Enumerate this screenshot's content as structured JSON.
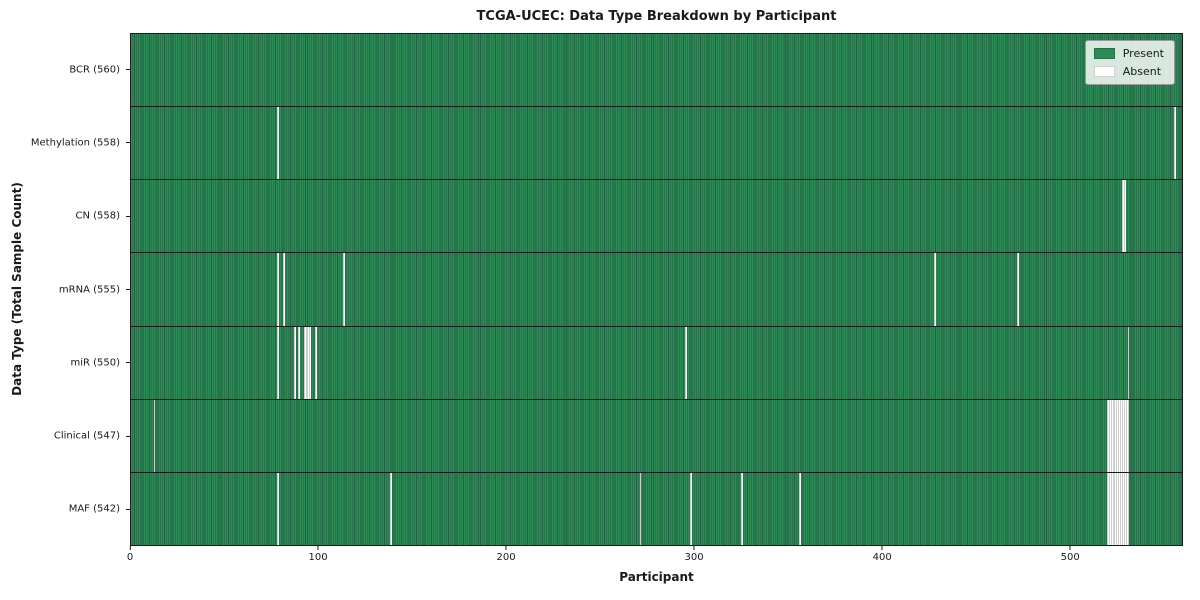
{
  "chart_data": {
    "type": "heatmap",
    "title": "TCGA-UCEC: Data Type Breakdown by Participant",
    "xlabel": "Participant",
    "ylabel": "Data Type (Total Sample Count)",
    "x_ticks": [
      0,
      100,
      200,
      300,
      400,
      500
    ],
    "x_range": [
      0,
      560
    ],
    "total_participants": 560,
    "grid": false,
    "legend_position": "upper right",
    "legend": [
      {
        "label": "Present",
        "color": "#2e8b57"
      },
      {
        "label": "Absent",
        "color": "#ffffff"
      }
    ],
    "colors": {
      "present": "#2e8b57",
      "present_edge": "#1f6240",
      "absent": "#ffffff"
    },
    "rows": [
      {
        "label": "BCR (560)",
        "present_count": 560,
        "absent_participants": []
      },
      {
        "label": "Methylation (558)",
        "present_count": 558,
        "absent_participants": [
          78,
          556
        ]
      },
      {
        "label": "CN (558)",
        "present_count": 558,
        "absent_participants": [
          528,
          529
        ]
      },
      {
        "label": "mRNA (555)",
        "present_count": 555,
        "absent_participants": [
          78,
          81,
          113,
          428,
          472
        ]
      },
      {
        "label": "miR (550)",
        "present_count": 550,
        "absent_participants": [
          78,
          87,
          89,
          92,
          93,
          94,
          95,
          98,
          295,
          531
        ]
      },
      {
        "label": "Clinical (547)",
        "present_count": 547,
        "absent_participants": [
          12,
          520,
          521,
          522,
          523,
          524,
          525,
          526,
          527,
          528,
          529,
          530,
          531
        ]
      },
      {
        "label": "MAF (542)",
        "present_count": 542,
        "absent_participants": [
          78,
          138,
          271,
          298,
          325,
          356,
          520,
          521,
          522,
          523,
          524,
          525,
          526,
          527,
          528,
          529,
          530,
          531
        ]
      }
    ]
  }
}
